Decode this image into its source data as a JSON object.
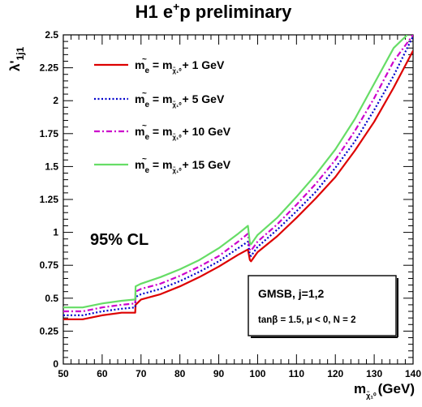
{
  "chart_data": {
    "type": "line",
    "title_parts": {
      "main": "H1 e",
      "sup": "+",
      "tail": "p preliminary"
    },
    "ylabel": {
      "main": "λ'",
      "sub": "1j1"
    },
    "xlabel": {
      "main": "m",
      "sub": "χ̃₁⁰",
      "unit": "(GeV)"
    },
    "xlim": [
      50,
      140
    ],
    "ylim": [
      0,
      2.5
    ],
    "x_ticks": [
      50,
      60,
      70,
      80,
      90,
      100,
      110,
      120,
      130,
      140
    ],
    "x_tick_labels": [
      "50",
      "60",
      "70",
      "80",
      "90",
      "100",
      "110",
      "120",
      "130",
      "140"
    ],
    "y_ticks": [
      0,
      0.25,
      0.5,
      0.75,
      1,
      1.25,
      1.5,
      1.75,
      2,
      2.25,
      2.5
    ],
    "y_tick_labels": [
      "0",
      "0.25",
      "0.5",
      "0.75",
      "1",
      "1.25",
      "1.5",
      "1.75",
      "2",
      "2.25",
      "2.5"
    ],
    "grid": false,
    "legend_position": "top-left",
    "series": [
      {
        "name": "1 GeV",
        "color": "#dd0000",
        "dash": "solid",
        "x": [
          50,
          55,
          60,
          65,
          68.5,
          68.6,
          70,
          75,
          80,
          85,
          90,
          95,
          97.5,
          98,
          98.3,
          100,
          105,
          110,
          115,
          120,
          125,
          130,
          135,
          140
        ],
        "y": [
          0.34,
          0.34,
          0.37,
          0.39,
          0.39,
          0.45,
          0.49,
          0.53,
          0.59,
          0.66,
          0.74,
          0.83,
          0.87,
          0.79,
          0.78,
          0.85,
          0.97,
          1.11,
          1.26,
          1.42,
          1.62,
          1.84,
          2.1,
          2.38
        ]
      },
      {
        "name": "5 GeV",
        "color": "#0000cc",
        "dash": "dotted",
        "x": [
          50,
          55,
          60,
          65,
          68.5,
          68.6,
          70,
          75,
          80,
          85,
          90,
          95,
          97.5,
          98,
          98.3,
          100,
          105,
          110,
          115,
          120,
          125,
          130,
          135,
          140
        ],
        "y": [
          0.37,
          0.37,
          0.4,
          0.42,
          0.43,
          0.51,
          0.53,
          0.57,
          0.63,
          0.7,
          0.78,
          0.88,
          0.93,
          0.83,
          0.82,
          0.89,
          1.02,
          1.16,
          1.31,
          1.49,
          1.69,
          1.93,
          2.19,
          2.49
        ]
      },
      {
        "name": "10 GeV",
        "color": "#cc00cc",
        "dash": "dashdot",
        "x": [
          50,
          55,
          60,
          65,
          68.5,
          68.6,
          70,
          75,
          80,
          85,
          90,
          95,
          97.5,
          98,
          98.3,
          100,
          105,
          110,
          115,
          120,
          125,
          130,
          135,
          140
        ],
        "y": [
          0.4,
          0.4,
          0.43,
          0.45,
          0.46,
          0.55,
          0.57,
          0.61,
          0.67,
          0.74,
          0.82,
          0.93,
          0.99,
          0.87,
          0.86,
          0.93,
          1.06,
          1.21,
          1.37,
          1.55,
          1.77,
          2.02,
          2.3,
          2.5
        ]
      },
      {
        "name": "15 GeV",
        "color": "#66dd66",
        "dash": "solid",
        "x": [
          50,
          55,
          60,
          65,
          68.5,
          68.6,
          70,
          75,
          80,
          85,
          90,
          95,
          97.5,
          98,
          98.3,
          100,
          105,
          110,
          115,
          120,
          125,
          130,
          135,
          138.5
        ],
        "y": [
          0.43,
          0.43,
          0.46,
          0.48,
          0.49,
          0.59,
          0.61,
          0.66,
          0.72,
          0.79,
          0.88,
          0.99,
          1.05,
          0.92,
          0.91,
          0.98,
          1.11,
          1.27,
          1.44,
          1.63,
          1.86,
          2.13,
          2.4,
          2.5
        ]
      }
    ],
    "legend": [
      {
        "series": 0,
        "label": "1 GeV"
      },
      {
        "series": 1,
        "label": "5 GeV"
      },
      {
        "series": 2,
        "label": "10 GeV"
      },
      {
        "series": 3,
        "label": "15 GeV"
      }
    ],
    "legend_formula": {
      "m": "m",
      "sub_e": "e",
      "tilde": "~",
      "eq": "=",
      "sub_chi": "χ̃₁⁰",
      "plus": "+"
    },
    "annotation_cl": "95% CL",
    "info_box": {
      "line1": "GMSB, j=1,2",
      "line2": "tanβ = 1.5,  μ < 0,  N = 2"
    }
  }
}
